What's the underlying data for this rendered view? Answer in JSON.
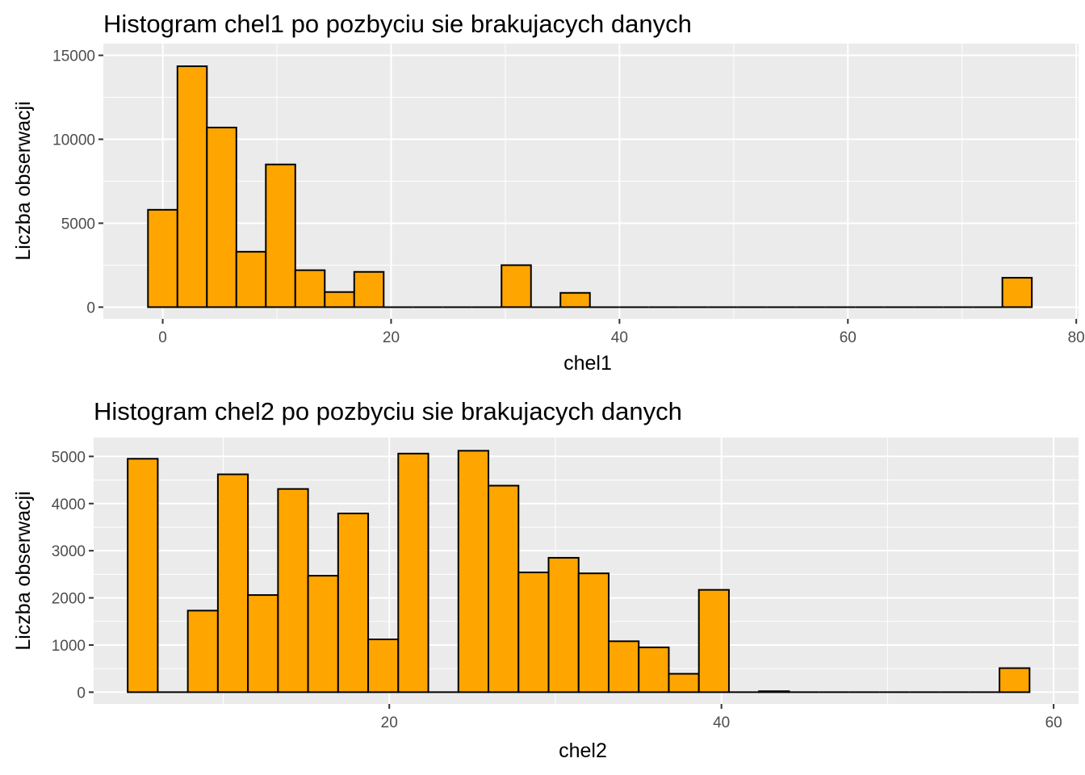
{
  "chart_data": [
    {
      "type": "bar",
      "title": "Histogram chel1 po pozbyciu sie brakujacych danych",
      "xlabel": "chel1",
      "ylabel": "Liczba obserwacji",
      "bin_width": 2.58,
      "x_start": -1.29,
      "xlim": [
        -5.2,
        80.2
      ],
      "ylim": [
        -700,
        15700
      ],
      "x_ticks": [
        0,
        20,
        40,
        60,
        80
      ],
      "y_ticks": [
        0,
        5000,
        10000,
        15000
      ],
      "x_tick_labels": [
        "0",
        "20",
        "40",
        "60",
        "80"
      ],
      "y_tick_labels": [
        "0",
        "5000",
        "10000",
        "15000"
      ],
      "values": [
        5800,
        14350,
        10700,
        3300,
        8500,
        2200,
        900,
        2100,
        0,
        0,
        0,
        0,
        2500,
        0,
        850,
        0,
        0,
        0,
        0,
        0,
        0,
        0,
        0,
        0,
        0,
        0,
        0,
        0,
        0,
        1750
      ],
      "fill": "#FFA500",
      "stroke": "#000000",
      "panel_background": "#EBEBEB",
      "grid": true
    },
    {
      "type": "bar",
      "title": "Histogram chel2 po pozbyciu sie brakujacych danych",
      "xlabel": "chel2",
      "ylabel": "Liczba obserwacji",
      "bin_width": 1.81,
      "x_start": 4.25,
      "xlim": [
        2.2,
        61.5
      ],
      "ylim": [
        -250,
        5400
      ],
      "x_ticks": [
        20,
        40,
        60
      ],
      "y_ticks": [
        0,
        1000,
        2000,
        3000,
        4000,
        5000
      ],
      "x_tick_labels": [
        "20",
        "40",
        "60"
      ],
      "y_tick_labels": [
        "0",
        "1000",
        "2000",
        "3000",
        "4000",
        "5000"
      ],
      "values": [
        4950,
        0,
        1730,
        4620,
        2060,
        4310,
        2470,
        3790,
        1120,
        5060,
        0,
        5120,
        4380,
        2540,
        2850,
        2520,
        1080,
        950,
        390,
        2170,
        0,
        20,
        0,
        0,
        0,
        0,
        0,
        0,
        0,
        510
      ],
      "fill": "#FFA500",
      "stroke": "#000000",
      "panel_background": "#EBEBEB",
      "grid": true
    }
  ]
}
